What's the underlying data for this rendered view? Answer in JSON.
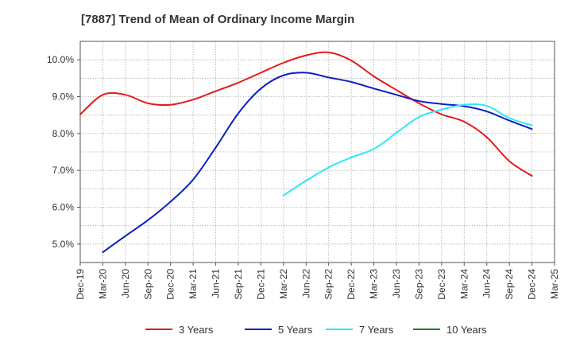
{
  "chart_data": {
    "type": "line",
    "title": "[7887]  Trend of Mean of Ordinary Income Margin",
    "xlabel": "",
    "ylabel": "",
    "x_ticks": [
      "Dec-19",
      "Mar-20",
      "Jun-20",
      "Sep-20",
      "Dec-20",
      "Mar-21",
      "Jun-21",
      "Sep-21",
      "Dec-21",
      "Mar-22",
      "Jun-22",
      "Sep-22",
      "Dec-22",
      "Mar-23",
      "Jun-23",
      "Sep-23",
      "Dec-23",
      "Mar-24",
      "Jun-24",
      "Sep-24",
      "Dec-24",
      "Mar-25"
    ],
    "y_ticks": [
      "5.0%",
      "6.0%",
      "7.0%",
      "8.0%",
      "9.0%",
      "10.0%"
    ],
    "ylim": [
      4.5,
      10.5
    ],
    "grid": true,
    "legend_position": "bottom",
    "series": [
      {
        "name": "3 Years",
        "color": "#e31a1c",
        "x": [
          "Dec-19",
          "Mar-20",
          "Jun-20",
          "Sep-20",
          "Dec-20",
          "Mar-21",
          "Jun-21",
          "Sep-21",
          "Dec-21",
          "Mar-22",
          "Jun-22",
          "Sep-22",
          "Dec-22",
          "Mar-23",
          "Jun-23",
          "Sep-23",
          "Dec-23",
          "Mar-24",
          "Jun-24",
          "Sep-24",
          "Dec-24"
        ],
        "values": [
          8.52,
          9.05,
          9.05,
          8.82,
          8.78,
          8.92,
          9.15,
          9.38,
          9.65,
          9.92,
          10.12,
          10.2,
          9.98,
          9.55,
          9.18,
          8.82,
          8.52,
          8.32,
          7.9,
          7.25,
          6.85
        ]
      },
      {
        "name": "5 Years",
        "color": "#0b1fc4",
        "x": [
          "Mar-20",
          "Jun-20",
          "Sep-20",
          "Dec-20",
          "Mar-21",
          "Jun-21",
          "Sep-21",
          "Dec-21",
          "Mar-22",
          "Jun-22",
          "Sep-22",
          "Dec-22",
          "Mar-23",
          "Jun-23",
          "Sep-23",
          "Dec-23",
          "Mar-24",
          "Jun-24",
          "Sep-24",
          "Dec-24"
        ],
        "values": [
          4.78,
          5.22,
          5.65,
          6.15,
          6.75,
          7.62,
          8.55,
          9.22,
          9.58,
          9.65,
          9.52,
          9.4,
          9.22,
          9.05,
          8.88,
          8.8,
          8.74,
          8.6,
          8.35,
          8.12
        ]
      },
      {
        "name": "7 Years",
        "color": "#2ee8f4",
        "x": [
          "Mar-22",
          "Jun-22",
          "Sep-22",
          "Dec-22",
          "Mar-23",
          "Jun-23",
          "Sep-23",
          "Dec-23",
          "Mar-24",
          "Jun-24",
          "Sep-24",
          "Dec-24"
        ],
        "values": [
          6.32,
          6.72,
          7.08,
          7.35,
          7.58,
          8.02,
          8.45,
          8.65,
          8.78,
          8.75,
          8.42,
          8.22
        ]
      },
      {
        "name": "10 Years",
        "color": "#1a7f1a",
        "x": [],
        "values": []
      }
    ]
  }
}
